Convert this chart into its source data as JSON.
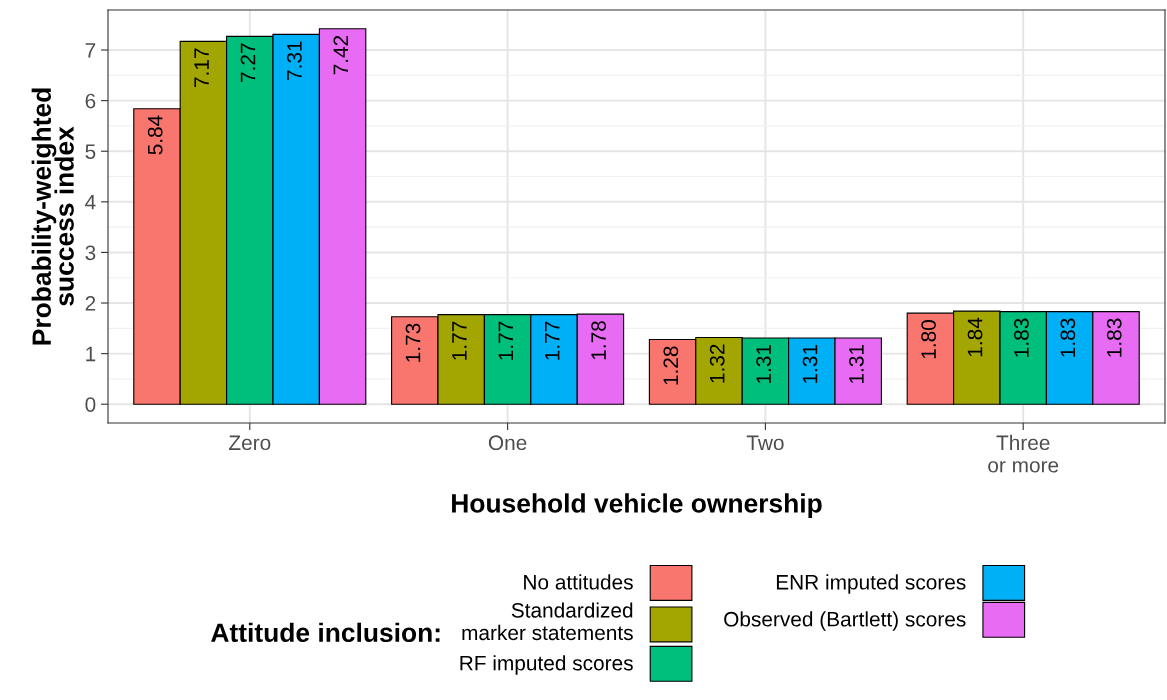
{
  "chart_data": {
    "type": "bar",
    "xlabel": "Household vehicle ownership",
    "ylabel": "Probability-weighted\nsuccess index",
    "legend_title": "Attitude inclusion:",
    "categories": [
      "Zero",
      "One",
      "Two",
      "Three\nor more"
    ],
    "series": [
      {
        "name": "No attitudes",
        "color": "#f8766d",
        "values": [
          5.84,
          1.73,
          1.28,
          1.8
        ],
        "value_labels": [
          "5.84",
          "1.73",
          "1.28",
          "1.80"
        ]
      },
      {
        "name": "Standardized\nmarker statements",
        "color": "#a3a500",
        "values": [
          7.17,
          1.77,
          1.32,
          1.84
        ],
        "value_labels": [
          "7.17",
          "1.77",
          "1.32",
          "1.84"
        ]
      },
      {
        "name": "RF imputed scores",
        "color": "#00bf7d",
        "values": [
          7.27,
          1.77,
          1.31,
          1.83
        ],
        "value_labels": [
          "7.27",
          "1.77",
          "1.31",
          "1.83"
        ]
      },
      {
        "name": "ENR imputed scores",
        "color": "#00b0f6",
        "values": [
          7.31,
          1.77,
          1.31,
          1.83
        ],
        "value_labels": [
          "7.31",
          "1.77",
          "1.31",
          "1.83"
        ]
      },
      {
        "name": "Observed (Bartlett) scores",
        "color": "#e76bf3",
        "values": [
          7.42,
          1.78,
          1.31,
          1.83
        ],
        "value_labels": [
          "7.42",
          "1.78",
          "1.31",
          "1.83"
        ]
      }
    ],
    "ylim": [
      -0.371,
      7.791
    ],
    "yticks": [
      0,
      1,
      2,
      3,
      4,
      5,
      6,
      7
    ],
    "grid": true,
    "legend": "bottom"
  }
}
